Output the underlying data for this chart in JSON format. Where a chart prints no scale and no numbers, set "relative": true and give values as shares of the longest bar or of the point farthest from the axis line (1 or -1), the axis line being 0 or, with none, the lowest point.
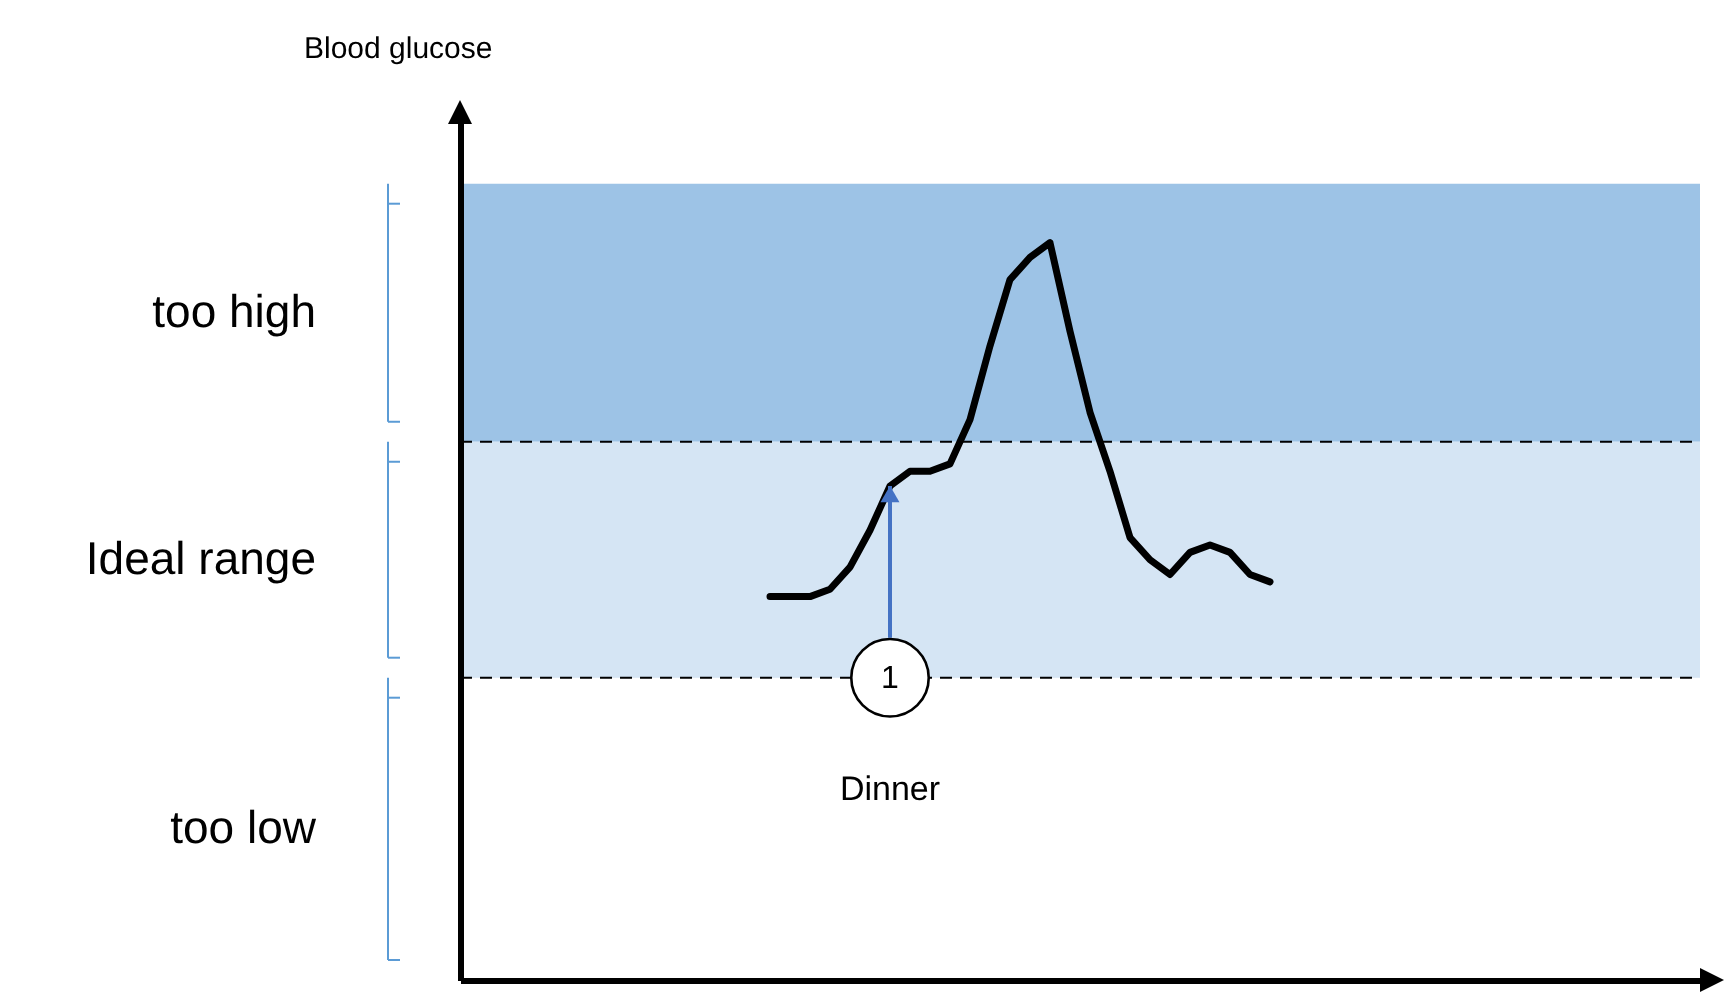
{
  "chart_data": {
    "type": "line",
    "relative": true,
    "categories": [
      null,
      null,
      null,
      null,
      null,
      null,
      null,
      null,
      null,
      null,
      null,
      null,
      null,
      null,
      null,
      null,
      null,
      null,
      null,
      null,
      null,
      null,
      null,
      null,
      null,
      null,
      null,
      null,
      null,
      null,
      null,
      null,
      null,
      null,
      null,
      null,
      null,
      null,
      null,
      null,
      null,
      null,
      null,
      null,
      null,
      null,
      null,
      null,
      null,
      null,
      null,
      null,
      null,
      null,
      null,
      null,
      null,
      null,
      null,
      null,
      null,
      null
    ],
    "series": [
      {
        "color": "#000000",
        "values": [
          null,
          null,
          null,
          null,
          null,
          null,
          null,
          null,
          null,
          null,
          null,
          null,
          null,
          null,
          null,
          0.52,
          0.52,
          0.52,
          0.53,
          0.56,
          0.61,
          0.67,
          0.69,
          0.69,
          0.7,
          0.76,
          0.86,
          0.95,
          0.98,
          1,
          0.88,
          0.77,
          0.69,
          0.6,
          0.57,
          0.55,
          0.58,
          0.59,
          0.58,
          0.55,
          0.54,
          null,
          null,
          null,
          null,
          null,
          null,
          null,
          null,
          null,
          null,
          null,
          null,
          null,
          null,
          null,
          null,
          null,
          null,
          null,
          null,
          null
        ]
      }
    ],
    "bands": [
      {
        "axis": "y",
        "from": 0.73,
        "to": 1.08,
        "color": "#9dc3e6"
      },
      {
        "axis": "y",
        "from": 0.41,
        "to": 0.73,
        "color": "#d5e5f4"
      }
    ],
    "ref_lines": [
      {
        "axis": "y",
        "value": 0.41,
        "line_style": "dashed",
        "color": "#000000"
      },
      {
        "axis": "y",
        "value": 0.73,
        "line_style": "dashed",
        "color": "#000000"
      }
    ],
    "annotations": [
      "Blood glucose",
      "too high",
      "Ideal range",
      "too low",
      "1",
      "Dinner"
    ]
  }
}
